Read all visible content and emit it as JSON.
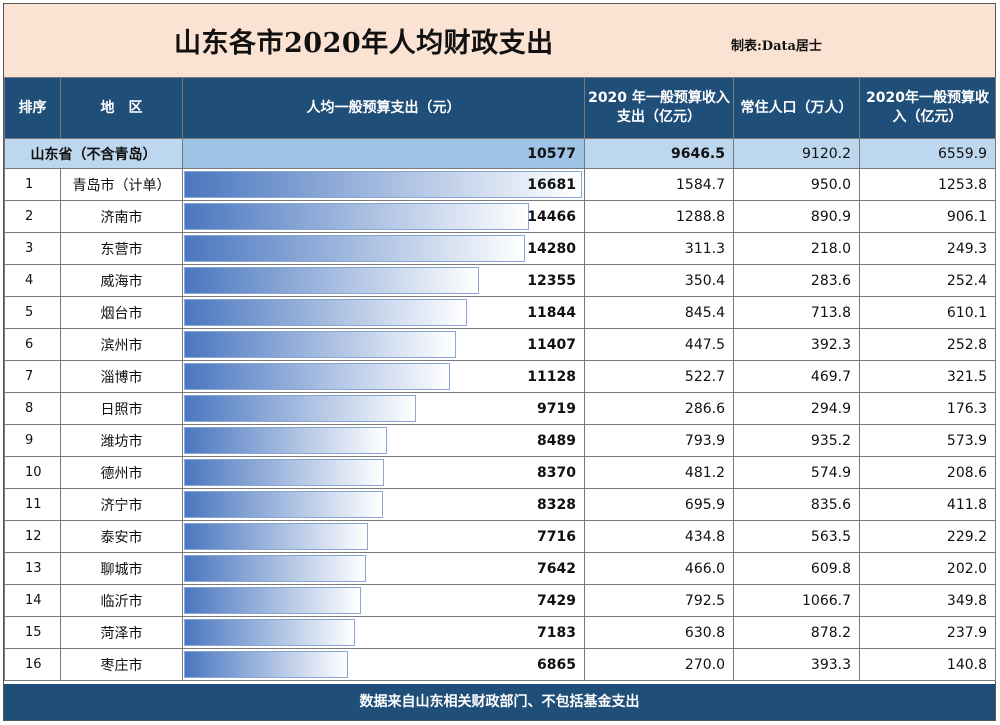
{
  "title": "山东各市2020年人均财政支出",
  "credit": "制表:Data居士",
  "headers": {
    "rank": "排序",
    "region": "地　区",
    "per_capita": "人均一般预算支出（元）",
    "expenditure": "2020 年一般预算收入支出（亿元）",
    "population": "常住人口（万人）",
    "revenue": "2020年一般预算收入（亿元）"
  },
  "province_row": {
    "region": "山东省（不含青岛）",
    "per_capita": "10577",
    "expenditure": "9646.5",
    "population": "9120.2",
    "revenue": "6559.9"
  },
  "footer": "数据来自山东相关财政部门、不包括基金支出",
  "chart_data": {
    "type": "table",
    "bar_column": "per_capita",
    "bar_max": 16681,
    "rows": [
      {
        "rank": "1",
        "region": "青岛市（计单）",
        "per_capita": 16681,
        "expenditure": "1584.7",
        "population": "950.0",
        "revenue": "1253.8"
      },
      {
        "rank": "2",
        "region": "济南市",
        "per_capita": 14466,
        "expenditure": "1288.8",
        "population": "890.9",
        "revenue": "906.1"
      },
      {
        "rank": "3",
        "region": "东营市",
        "per_capita": 14280,
        "expenditure": "311.3",
        "population": "218.0",
        "revenue": "249.3"
      },
      {
        "rank": "4",
        "region": "威海市",
        "per_capita": 12355,
        "expenditure": "350.4",
        "population": "283.6",
        "revenue": "252.4"
      },
      {
        "rank": "5",
        "region": "烟台市",
        "per_capita": 11844,
        "expenditure": "845.4",
        "population": "713.8",
        "revenue": "610.1"
      },
      {
        "rank": "6",
        "region": "滨州市",
        "per_capita": 11407,
        "expenditure": "447.5",
        "population": "392.3",
        "revenue": "252.8"
      },
      {
        "rank": "7",
        "region": "淄博市",
        "per_capita": 11128,
        "expenditure": "522.7",
        "population": "469.7",
        "revenue": "321.5"
      },
      {
        "rank": "8",
        "region": "日照市",
        "per_capita": 9719,
        "expenditure": "286.6",
        "population": "294.9",
        "revenue": "176.3"
      },
      {
        "rank": "9",
        "region": "潍坊市",
        "per_capita": 8489,
        "expenditure": "793.9",
        "population": "935.2",
        "revenue": "573.9"
      },
      {
        "rank": "10",
        "region": "德州市",
        "per_capita": 8370,
        "expenditure": "481.2",
        "population": "574.9",
        "revenue": "208.6"
      },
      {
        "rank": "11",
        "region": "济宁市",
        "per_capita": 8328,
        "expenditure": "695.9",
        "population": "835.6",
        "revenue": "411.8"
      },
      {
        "rank": "12",
        "region": "泰安市",
        "per_capita": 7716,
        "expenditure": "434.8",
        "population": "563.5",
        "revenue": "229.2"
      },
      {
        "rank": "13",
        "region": "聊城市",
        "per_capita": 7642,
        "expenditure": "466.0",
        "population": "609.8",
        "revenue": "202.0"
      },
      {
        "rank": "14",
        "region": "临沂市",
        "per_capita": 7429,
        "expenditure": "792.5",
        "population": "1066.7",
        "revenue": "349.8"
      },
      {
        "rank": "15",
        "region": "菏泽市",
        "per_capita": 7183,
        "expenditure": "630.8",
        "population": "878.2",
        "revenue": "237.9"
      },
      {
        "rank": "16",
        "region": "枣庄市",
        "per_capita": 6865,
        "expenditure": "270.0",
        "population": "393.3",
        "revenue": "140.8"
      }
    ]
  }
}
